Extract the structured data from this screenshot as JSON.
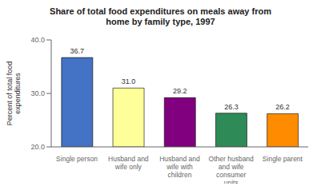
{
  "chart_data": {
    "type": "bar",
    "title": "Share of total food expenditures on meals away from\nhome by family type, 1997",
    "categories": [
      "Single person",
      "Husband and\nwife only",
      "Husband and\nwife with\nchildren",
      "Other husband\nand wife\nconsumer\nunits",
      "Single parent"
    ],
    "values": [
      36.7,
      31.0,
      29.2,
      26.3,
      26.2
    ],
    "value_labels": [
      "36.7",
      "31.0",
      "29.2",
      "26.3",
      "26.2"
    ],
    "colors": [
      "#4472C4",
      "#FFFF99",
      "#800080",
      "#2E8B57",
      "#FF8C00"
    ],
    "ylabel": "Percent of total food\nexpenditures",
    "ylim": [
      20.0,
      40.0
    ],
    "yticks": [
      {
        "value": 20.0,
        "label": "20.0"
      },
      {
        "value": 30.0,
        "label": "30.0"
      },
      {
        "value": 40.0,
        "label": "40.0"
      }
    ],
    "grid": false,
    "data_labels": true
  }
}
